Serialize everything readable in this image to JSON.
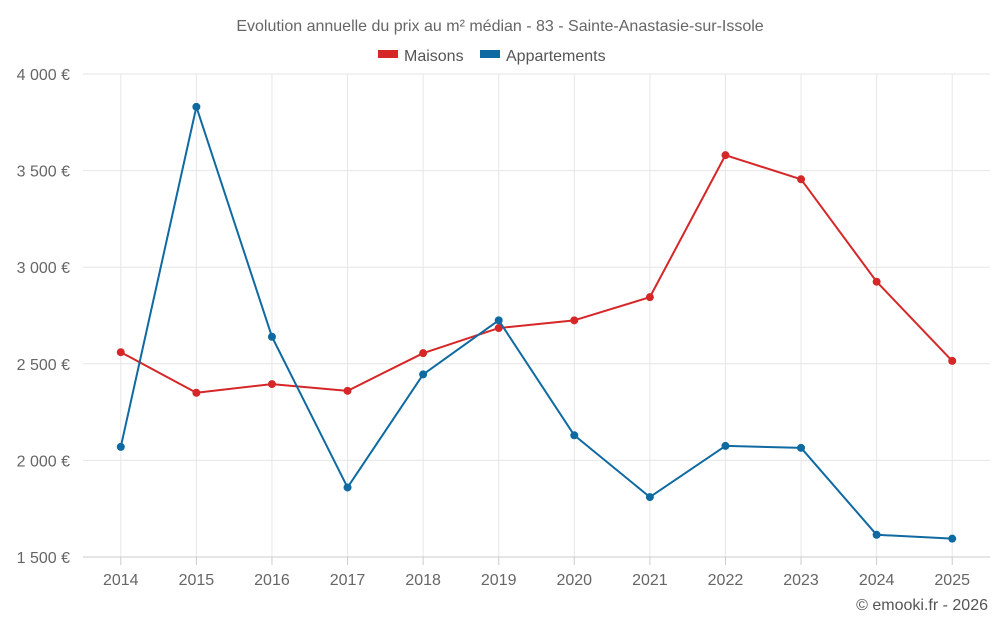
{
  "chart_data": {
    "type": "line",
    "title": "Evolution annuelle du prix au m² médian - 83 - Sainte-Anastasie-sur-Issole",
    "categories": [
      "2014",
      "2015",
      "2016",
      "2017",
      "2018",
      "2019",
      "2020",
      "2021",
      "2022",
      "2023",
      "2024",
      "2025"
    ],
    "series": [
      {
        "name": "Maisons",
        "color": "#d62728",
        "values": [
          2560,
          2350,
          2395,
          2360,
          2555,
          2685,
          2725,
          2845,
          3580,
          3455,
          2925,
          2515
        ]
      },
      {
        "name": "Appartements",
        "color": "#0f6aa1",
        "values": [
          2070,
          3830,
          2640,
          1860,
          2445,
          2725,
          2130,
          1810,
          2075,
          2065,
          1615,
          1595
        ]
      }
    ],
    "ylim": [
      1500,
      4000
    ],
    "yticks": [
      1500,
      2000,
      2500,
      3000,
      3500,
      4000
    ],
    "ytick_labels": [
      "1 500 €",
      "2 000 €",
      "2 500 €",
      "3 000 €",
      "3 500 €",
      "4 000 €"
    ],
    "grid": true,
    "legend_position": "top-center"
  },
  "credit": "© emooki.fr - 2026"
}
